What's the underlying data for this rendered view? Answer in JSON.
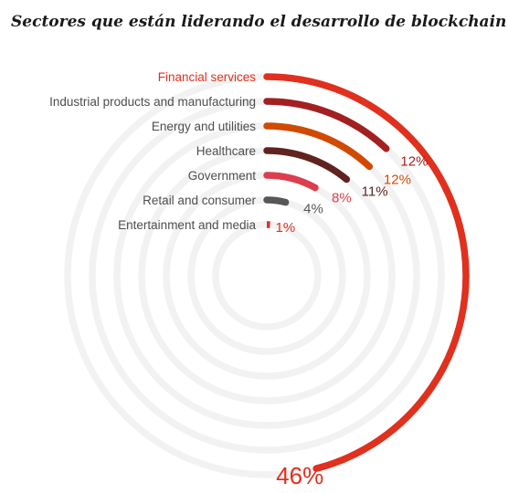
{
  "chart_data": {
    "type": "radial-bar",
    "title": "Sectores que están liderando el desarrollo de blockchain",
    "unit": "%",
    "grid": true,
    "series": [
      {
        "name": "Financial services",
        "value": 46,
        "label": "46%",
        "color": "#e0301e"
      },
      {
        "name": "Industrial products and manufacturing",
        "value": 12,
        "label": "12%",
        "color": "#a32020"
      },
      {
        "name": "Energy and utilities",
        "value": 12,
        "label": "12%",
        "color": "#d04a02"
      },
      {
        "name": "Healthcare",
        "value": 11,
        "label": "11%",
        "color": "#602320"
      },
      {
        "name": "Government",
        "value": 8,
        "label": "8%",
        "color": "#db3e4d"
      },
      {
        "name": "Retail and consumer",
        "value": 4,
        "label": "4%",
        "color": "#575757"
      },
      {
        "name": "Entertainment and media",
        "value": 1,
        "label": "1%",
        "color": "#e0301e"
      }
    ],
    "colors": {
      "track": "#f2f2f2",
      "label_text": "#4d4d4d",
      "highlight_label": "#e0301e"
    }
  }
}
